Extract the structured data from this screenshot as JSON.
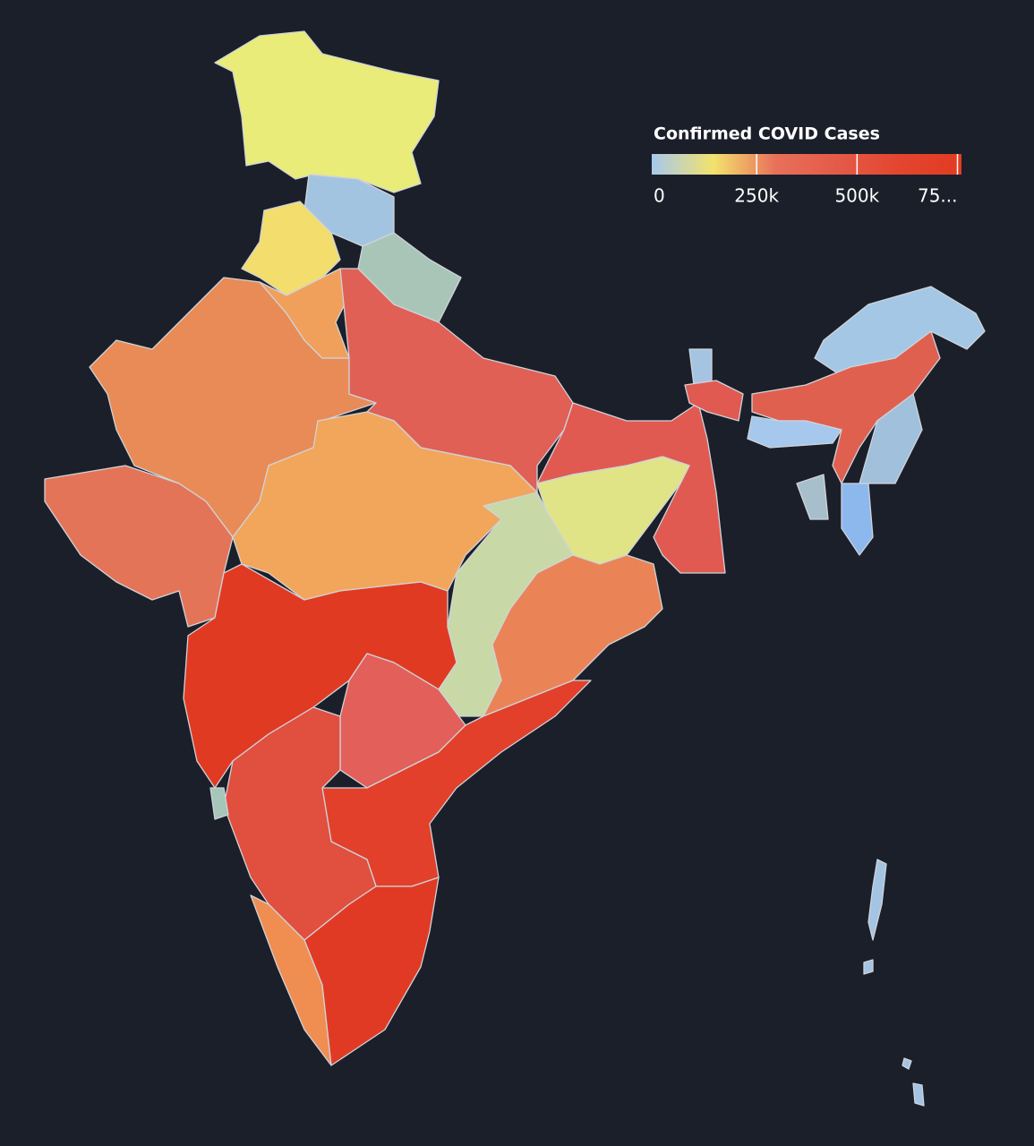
{
  "chart_data": {
    "type": "choropleth",
    "title": "Confirmed COVID Cases",
    "color_lim": [
      0,
      760000
    ],
    "color_ticks": [
      0,
      {
        "value": 250000,
        "label": "250k"
      },
      {
        "value": 500000,
        "label": "500k"
      },
      {
        "value": 750000,
        "label": "75..."
      }
    ],
    "colorscale": [
      "#a6c9ec",
      "#f3e26d",
      "#e8705a",
      "#e45a48",
      "#e3452f",
      "#e23b22"
    ]
  }
}
